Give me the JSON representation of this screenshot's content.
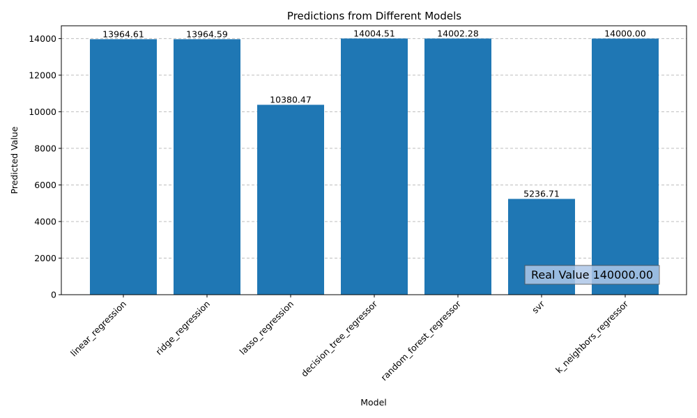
{
  "chart_data": {
    "type": "bar",
    "title": "Predictions from Different Models",
    "xlabel": "Model",
    "ylabel": "Predicted Value",
    "categories": [
      "linear_regression",
      "ridge_regression",
      "lasso_regression",
      "decision_tree_regressor",
      "random_forest_regressor",
      "svr",
      "k_neighbors_regressor"
    ],
    "values": [
      13964.61,
      13964.59,
      10380.47,
      14004.51,
      14002.28,
      5236.71,
      14000.0
    ],
    "value_labels": [
      "13964.61",
      "13964.59",
      "10380.47",
      "14004.51",
      "14002.28",
      "5236.71",
      "14000.00"
    ],
    "ylim": [
      0,
      14700
    ],
    "yticks": [
      0,
      2000,
      4000,
      6000,
      8000,
      10000,
      12000,
      14000
    ],
    "ytick_labels": [
      "0",
      "2000",
      "4000",
      "6000",
      "8000",
      "10000",
      "12000",
      "14000"
    ],
    "grid": "y-dashed",
    "bar_color": "#1f77b4",
    "annotation": {
      "text": "Real Value 140000.00",
      "placement": "bottom-right",
      "box_color": "#aec7e8"
    }
  }
}
